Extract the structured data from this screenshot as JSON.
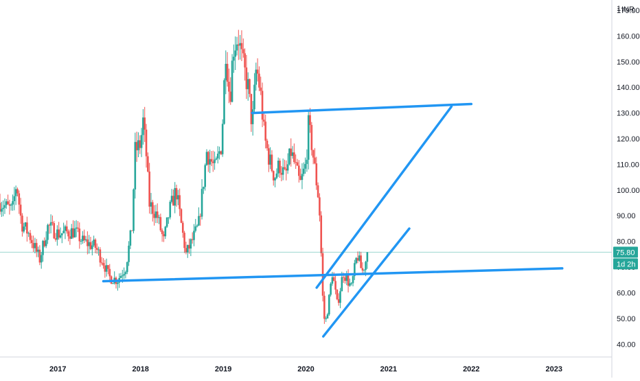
{
  "currency": "INR",
  "colors": {
    "up": "#26a69a",
    "down": "#ef5350",
    "trendline": "#2196f3",
    "price_badge": "#26a69a",
    "axis_line": "#d1d4dc",
    "axis_text": "#131722",
    "price_line": "#26a69a"
  },
  "chart_data": {
    "type": "candlestick",
    "x_ticks": [
      "2017",
      "2018",
      "2019",
      "2020",
      "2021",
      "2022",
      "2023"
    ],
    "y_ticks": [
      "40.00",
      "50.00",
      "60.00",
      "70.00",
      "80.00",
      "90.00",
      "100.00",
      "110.00",
      "120.00",
      "130.00",
      "140.00",
      "150.00",
      "160.00",
      "170.00"
    ],
    "ylim": [
      35,
      174
    ],
    "xlim": [
      2016.3,
      2023.7
    ],
    "last_price": "75.80",
    "last_price_value": 75.8,
    "countdown": "1d 2h",
    "top_label": "1",
    "anchors": [
      [
        2016.3,
        95
      ],
      [
        2016.45,
        92
      ],
      [
        2016.5,
        103
      ],
      [
        2016.56,
        87
      ],
      [
        2016.65,
        83
      ],
      [
        2016.78,
        73
      ],
      [
        2016.88,
        86
      ],
      [
        2017.0,
        83
      ],
      [
        2017.2,
        84
      ],
      [
        2017.3,
        80
      ],
      [
        2017.45,
        78
      ],
      [
        2017.55,
        72
      ],
      [
        2017.62,
        66
      ],
      [
        2017.72,
        65
      ],
      [
        2017.82,
        70
      ],
      [
        2017.9,
        86
      ],
      [
        2017.93,
        115
      ],
      [
        2018.0,
        118
      ],
      [
        2018.03,
        127
      ],
      [
        2018.08,
        110
      ],
      [
        2018.1,
        95
      ],
      [
        2018.2,
        90
      ],
      [
        2018.28,
        80
      ],
      [
        2018.35,
        92
      ],
      [
        2018.43,
        100
      ],
      [
        2018.5,
        85
      ],
      [
        2018.55,
        75
      ],
      [
        2018.62,
        80
      ],
      [
        2018.7,
        86
      ],
      [
        2018.75,
        100
      ],
      [
        2018.8,
        115
      ],
      [
        2018.9,
        108
      ],
      [
        2018.98,
        118
      ],
      [
        2019.03,
        155
      ],
      [
        2019.08,
        135
      ],
      [
        2019.12,
        155
      ],
      [
        2019.18,
        160
      ],
      [
        2019.23,
        150
      ],
      [
        2019.3,
        140
      ],
      [
        2019.35,
        125
      ],
      [
        2019.4,
        148
      ],
      [
        2019.45,
        138
      ],
      [
        2019.5,
        120
      ],
      [
        2019.55,
        113
      ],
      [
        2019.62,
        105
      ],
      [
        2019.68,
        110
      ],
      [
        2019.75,
        105
      ],
      [
        2019.82,
        115
      ],
      [
        2019.88,
        108
      ],
      [
        2019.93,
        102
      ],
      [
        2020.0,
        110
      ],
      [
        2020.03,
        125
      ],
      [
        2020.07,
        118
      ],
      [
        2020.12,
        105
      ],
      [
        2020.16,
        95
      ],
      [
        2020.18,
        80
      ],
      [
        2020.2,
        60
      ],
      [
        2020.23,
        47
      ],
      [
        2020.27,
        55
      ],
      [
        2020.32,
        68
      ],
      [
        2020.38,
        55
      ],
      [
        2020.45,
        68
      ],
      [
        2020.55,
        62
      ],
      [
        2020.62,
        75
      ],
      [
        2020.68,
        68
      ],
      [
        2020.72,
        72
      ],
      [
        2020.75,
        76
      ]
    ],
    "trendlines": [
      {
        "points": [
          [
            2017.55,
            64.5
          ],
          [
            2023.1,
            69.5
          ]
        ]
      },
      {
        "points": [
          [
            2019.35,
            130.0
          ],
          [
            2022.0,
            133.5
          ]
        ]
      },
      {
        "points": [
          [
            2020.13,
            62.0
          ],
          [
            2021.76,
            132.5
          ]
        ]
      },
      {
        "points": [
          [
            2020.21,
            43.0
          ],
          [
            2021.25,
            85.0
          ]
        ]
      }
    ]
  }
}
